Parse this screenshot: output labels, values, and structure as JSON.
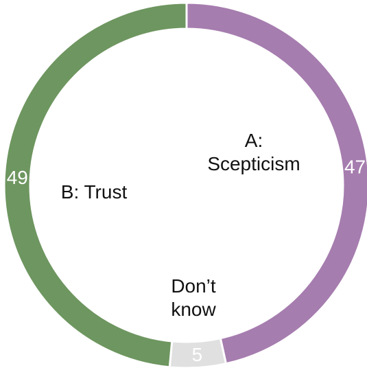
{
  "chart_data": {
    "type": "donut",
    "categories": [
      "A: Scepticism",
      "Don’t know",
      "B: Trust"
    ],
    "values": [
      47,
      5,
      49
    ],
    "colors": [
      "#a67daf",
      "#e0e0e0",
      "#6e9660"
    ]
  }
}
